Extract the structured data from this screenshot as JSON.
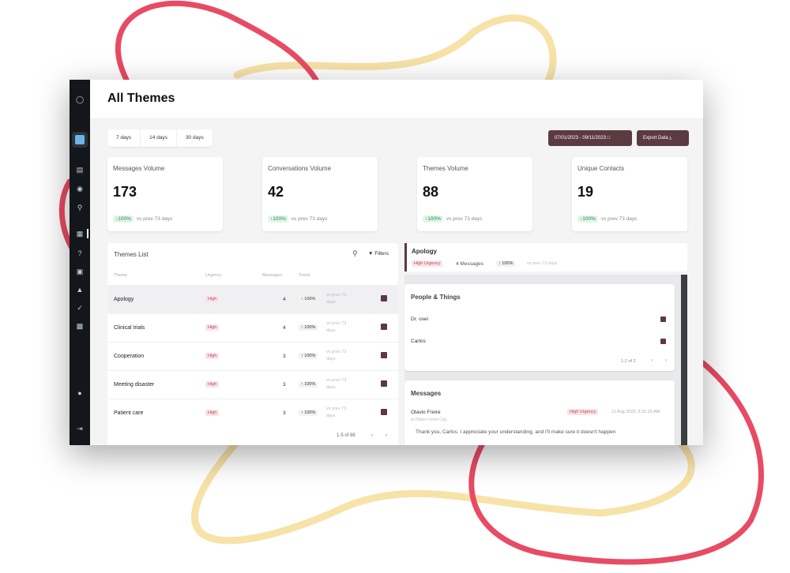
{
  "header": {
    "title": "All Themes"
  },
  "range_tabs": [
    "7 days",
    "14 days",
    "30 days"
  ],
  "toolbar": {
    "date_range": "07/01/2023 - 09/11/2023",
    "export_label": "Export Data"
  },
  "cards": [
    {
      "title": "Messages Volume",
      "value": "173",
      "change": "100%",
      "compare": "vs prev 73 days"
    },
    {
      "title": "Conversations Volume",
      "value": "42",
      "change": "100%",
      "compare": "vs prev 73 days"
    },
    {
      "title": "Themes Volume",
      "value": "88",
      "change": "100%",
      "compare": "vs prev 73 days"
    },
    {
      "title": "Unique Contacts",
      "value": "19",
      "change": "100%",
      "compare": "vs prev 73 days"
    }
  ],
  "themes_list": {
    "title": "Themes List",
    "filters_label": "Filters",
    "columns": [
      "Theme",
      "Urgency",
      "Messages",
      "Trend"
    ],
    "rows": [
      {
        "theme": "Apology",
        "urgency": "High",
        "messages": "4",
        "trend": "100%",
        "note": "vs prev 73 days"
      },
      {
        "theme": "Clinical trials",
        "urgency": "High",
        "messages": "4",
        "trend": "100%",
        "note": "vs prev 73 days"
      },
      {
        "theme": "Cooperation",
        "urgency": "High",
        "messages": "3",
        "trend": "100%",
        "note": "vs prev 73 days"
      },
      {
        "theme": "Meeting disaster",
        "urgency": "High",
        "messages": "3",
        "trend": "100%",
        "note": "vs prev 73 days"
      },
      {
        "theme": "Patient care",
        "urgency": "High",
        "messages": "3",
        "trend": "100%",
        "note": "vs prev 73 days"
      }
    ],
    "pagination": "1-5 of 88"
  },
  "detail": {
    "title": "Apology",
    "urgency": "High Urgency",
    "messages_count": "4 Messages",
    "trend": "100%",
    "compare": "vs prev 73 days",
    "people_title": "People & Things",
    "people": [
      "Dr. osei",
      "Carlos"
    ],
    "people_pager": "1-2 of 2",
    "messages_title": "Messages",
    "message": {
      "author": "Otavio Freire",
      "to": "to Otavio Freire Cap.",
      "urgency": "High Urgency",
      "date": "11 Aug 2023, 9:31:23 AM",
      "text": "Thank you, Carlos. I appreciate your understanding, and I'll make sure it doesn't happen"
    }
  },
  "colors": {
    "accent": "#5b3a40",
    "sidebar": "#13171b",
    "positive": "#1f8a4c",
    "blob_red": "#e84b63",
    "blob_yellow": "#f7e2a8"
  },
  "icons": [
    "logo-icon",
    "dashboard-icon",
    "chart-icon",
    "shield-icon",
    "search-icon",
    "themes-icon",
    "help-icon",
    "contacts-icon",
    "alert-icon",
    "check-icon",
    "document-icon",
    "team-icon",
    "logout-icon",
    "calendar-icon",
    "download-icon",
    "filter-icon",
    "chat-icon",
    "trend-up-icon"
  ]
}
